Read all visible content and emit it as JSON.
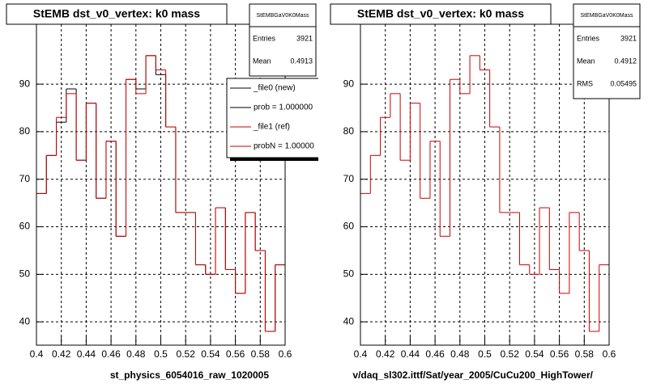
{
  "chart_data": [
    {
      "type": "histogram",
      "title": "StEMB dst_v0_vertex: k0 mass",
      "xlabel": "st_physics_6054016_raw_1020005",
      "bins": [
        0.4,
        0.408,
        0.416,
        0.424,
        0.432,
        0.44,
        0.448,
        0.456,
        0.464,
        0.472,
        0.48,
        0.488,
        0.496,
        0.504,
        0.512,
        0.52,
        0.528,
        0.536,
        0.544,
        0.552,
        0.56,
        0.568,
        0.576,
        0.584,
        0.592,
        0.6
      ],
      "series": [
        {
          "name": "_file0 (new)",
          "color": "#000000",
          "values": [
            67,
            75,
            82,
            89,
            74,
            86,
            66,
            78,
            58,
            91,
            89,
            96,
            92,
            81,
            63,
            63,
            52,
            50,
            64,
            51,
            46,
            63,
            55,
            38,
            52
          ]
        },
        {
          "name": "_file1 (ref)",
          "color": "#cc0000",
          "values": [
            67,
            75,
            83,
            88,
            74,
            86,
            66,
            78,
            58,
            91,
            88,
            96,
            93,
            81,
            63,
            63,
            52,
            50,
            64,
            51,
            46,
            63,
            55,
            38,
            52
          ]
        }
      ],
      "legend": true,
      "legend_notes": [
        "prob = 1.000000",
        "probN = 1.00000"
      ],
      "stats": {
        "title": "StEMBGaV0K0Mass",
        "rows": [
          [
            "Entries",
            "3921"
          ],
          [
            "Mean",
            "0.4913"
          ]
        ]
      },
      "xlim": [
        0.4,
        0.6
      ],
      "ylim": [
        35.1,
        102.6
      ],
      "xticks": [
        0.4,
        0.42,
        0.44,
        0.46,
        0.48,
        0.5,
        0.52,
        0.54,
        0.56,
        0.58,
        0.6
      ],
      "yticks": [
        40,
        50,
        60,
        70,
        80,
        90
      ],
      "grid": true
    },
    {
      "type": "histogram",
      "title": "StEMB dst_v0_vertex: k0 mass",
      "xlabel": "v/daq_sl302.ittf/Sat/year_2005/CuCu200_HighTower/",
      "bins": [
        0.4,
        0.408,
        0.416,
        0.424,
        0.432,
        0.44,
        0.448,
        0.456,
        0.464,
        0.472,
        0.48,
        0.488,
        0.496,
        0.504,
        0.512,
        0.52,
        0.528,
        0.536,
        0.544,
        0.552,
        0.56,
        0.568,
        0.576,
        0.584,
        0.592,
        0.6
      ],
      "series": [
        {
          "color": "#cc0000",
          "values": [
            67,
            75,
            83,
            88,
            74,
            86,
            66,
            78,
            58,
            91,
            88,
            96,
            93,
            81,
            63,
            63,
            52,
            50,
            64,
            51,
            46,
            63,
            55,
            38,
            52
          ]
        }
      ],
      "legend": false,
      "stats": {
        "title": "StEMBGaV0K0Mass",
        "rows": [
          [
            "Entries",
            "3921"
          ],
          [
            "Mean",
            "0.4912"
          ],
          [
            "RMS",
            "0.05495"
          ]
        ]
      },
      "xlim": [
        0.4,
        0.6
      ],
      "ylim": [
        35.1,
        102.6
      ],
      "xticks": [
        0.4,
        0.42,
        0.44,
        0.46,
        0.48,
        0.5,
        0.52,
        0.54,
        0.56,
        0.58,
        0.6
      ],
      "yticks": [
        40,
        50,
        60,
        70,
        80,
        90
      ],
      "grid": true
    }
  ]
}
